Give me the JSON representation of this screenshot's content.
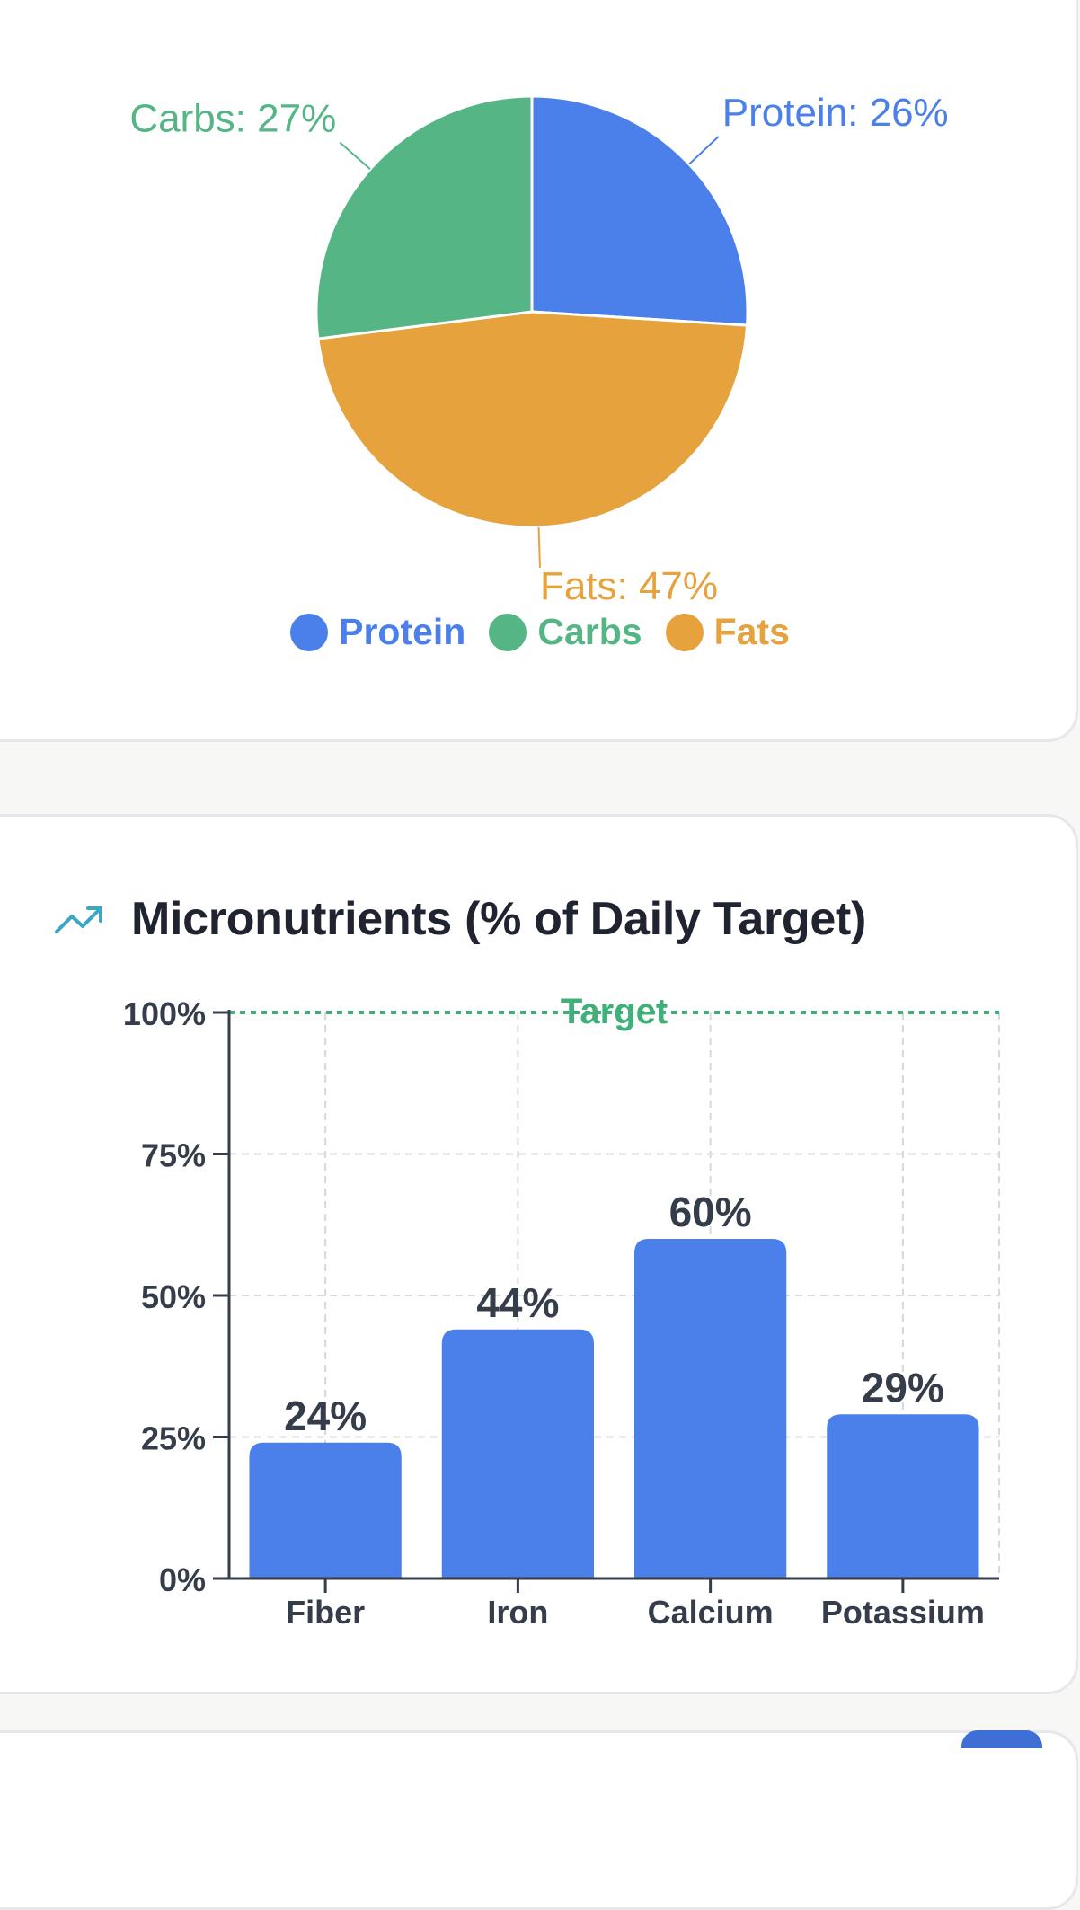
{
  "colors": {
    "protein": "#4b7fe9",
    "carbs": "#55b584",
    "fats": "#e6a23c",
    "bar": "#4b7fe9",
    "target": "#3fb07a",
    "axis": "#353c4a",
    "text_dark": "#1f2430"
  },
  "macros": {
    "chart_type": "pie",
    "slices": [
      {
        "key": "protein",
        "label": "Protein: 26%",
        "value": 26,
        "legend": "Protein"
      },
      {
        "key": "fats",
        "label": "Fats: 47%",
        "value": 47,
        "legend": "Fats"
      },
      {
        "key": "carbs",
        "label": "Carbs: 27%",
        "value": 27,
        "legend": "Carbs"
      }
    ]
  },
  "micros": {
    "title": "Micronutrients (% of Daily Target)",
    "icon": "trending-up-icon",
    "target_label": "Target"
  },
  "chart_data": [
    {
      "type": "pie",
      "title": "",
      "categories": [
        "Protein",
        "Carbs",
        "Fats"
      ],
      "values": [
        26,
        27,
        47
      ],
      "labels": [
        "Protein: 26%",
        "Carbs: 27%",
        "Fats: 47%"
      ],
      "legend": [
        "Protein",
        "Carbs",
        "Fats"
      ],
      "legend_position": "bottom"
    },
    {
      "type": "bar",
      "title": "Micronutrients (% of Daily Target)",
      "categories": [
        "Fiber",
        "Iron",
        "Calcium",
        "Potassium"
      ],
      "values": [
        24,
        44,
        60,
        29
      ],
      "value_labels": [
        "24%",
        "44%",
        "60%",
        "29%"
      ],
      "ylim": [
        0,
        100
      ],
      "yticks": [
        0,
        25,
        50,
        75,
        100
      ],
      "ytick_labels": [
        "0%",
        "25%",
        "50%",
        "75%",
        "100%"
      ],
      "grid": true,
      "reference_line": {
        "value": 100,
        "label": "Target",
        "style": "dotted"
      },
      "xlabel": "",
      "ylabel": ""
    }
  ]
}
